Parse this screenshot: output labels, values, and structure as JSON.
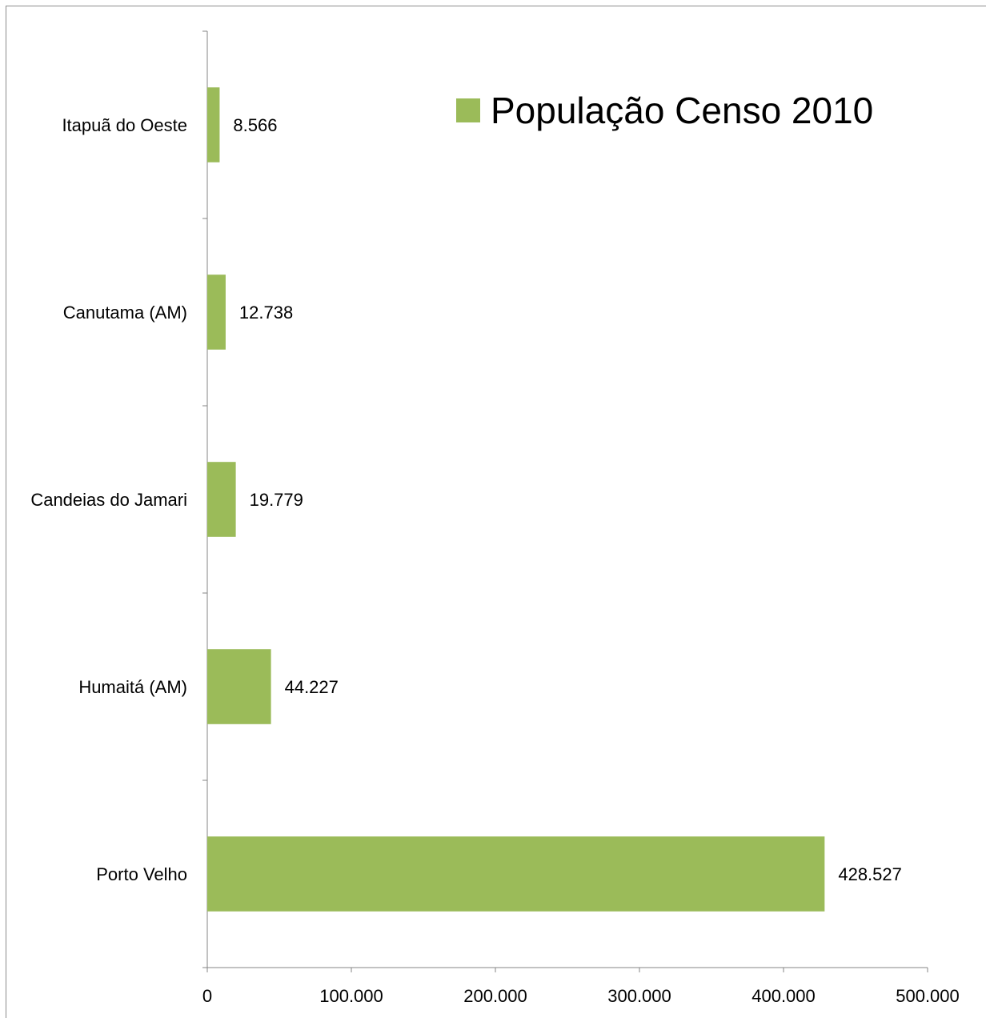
{
  "chart_data": {
    "type": "bar",
    "orientation": "horizontal",
    "categories": [
      "Itapuã do Oeste",
      "Canutama (AM)",
      "Candeias do Jamari",
      "Humaitá (AM)",
      "Porto Velho"
    ],
    "series": [
      {
        "name": "População Censo 2010",
        "values": [
          8566,
          12738,
          19779,
          44227,
          428527
        ],
        "value_labels": [
          "8.566",
          "12.738",
          "19.779",
          "44.227",
          "428.527"
        ],
        "color": "#9bbb59"
      }
    ],
    "xlim": [
      0,
      500000
    ],
    "x_ticks": [
      0,
      100000,
      200000,
      300000,
      400000,
      500000
    ],
    "x_tick_labels": [
      "0",
      "100.000",
      "200.000",
      "300.000",
      "400.000",
      "500.000"
    ],
    "grid": false,
    "legend": "top-right"
  }
}
